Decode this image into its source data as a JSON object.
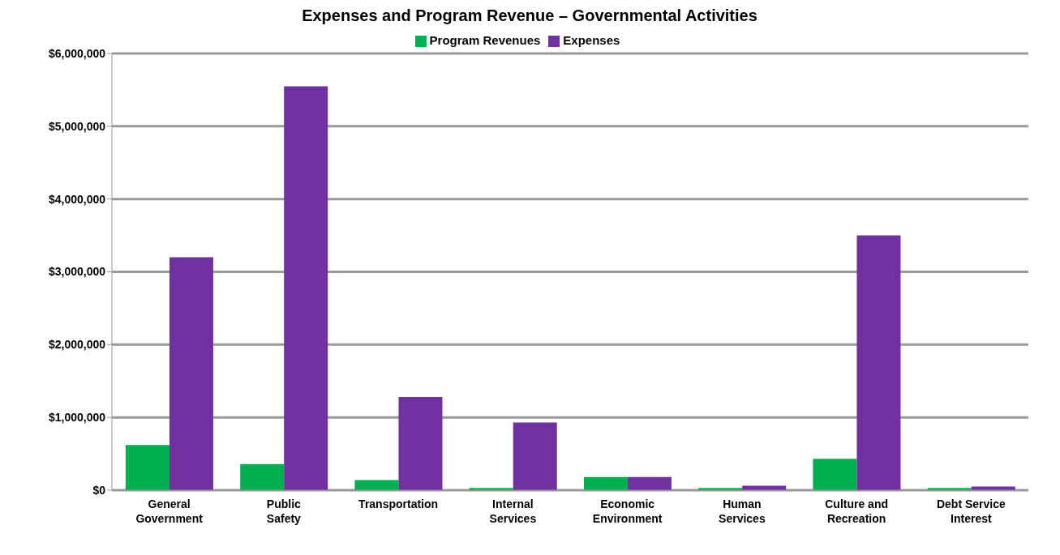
{
  "chart_data": {
    "type": "bar",
    "title": "Expenses and Program Revenue – Governmental Activities",
    "categories": [
      "General Government",
      "Public Safety",
      "Transportation",
      "Internal Services",
      "Economic Environment",
      "Human Services",
      "Culture and Recreation",
      "Debt Service Interest"
    ],
    "series": [
      {
        "name": "Program Revenues",
        "color": "#00b050",
        "values": [
          620000,
          360000,
          140000,
          30000,
          180000,
          30000,
          430000,
          30000
        ]
      },
      {
        "name": "Expenses",
        "color": "#7030a0",
        "values": [
          3200000,
          5550000,
          1280000,
          930000,
          180000,
          60000,
          3500000,
          50000
        ]
      }
    ],
    "ylim": [
      0,
      6000000
    ],
    "yticks": [
      {
        "value": 0,
        "label": "$0"
      },
      {
        "value": 1000000,
        "label": "$1,000,000"
      },
      {
        "value": 2000000,
        "label": "$2,000,000"
      },
      {
        "value": 3000000,
        "label": "$3,000,000"
      },
      {
        "value": 4000000,
        "label": "$4,000,000"
      },
      {
        "value": 5000000,
        "label": "$5,000,000"
      },
      {
        "value": 6000000,
        "label": "$6,000,000"
      }
    ],
    "grid": "y",
    "legend": "top"
  }
}
